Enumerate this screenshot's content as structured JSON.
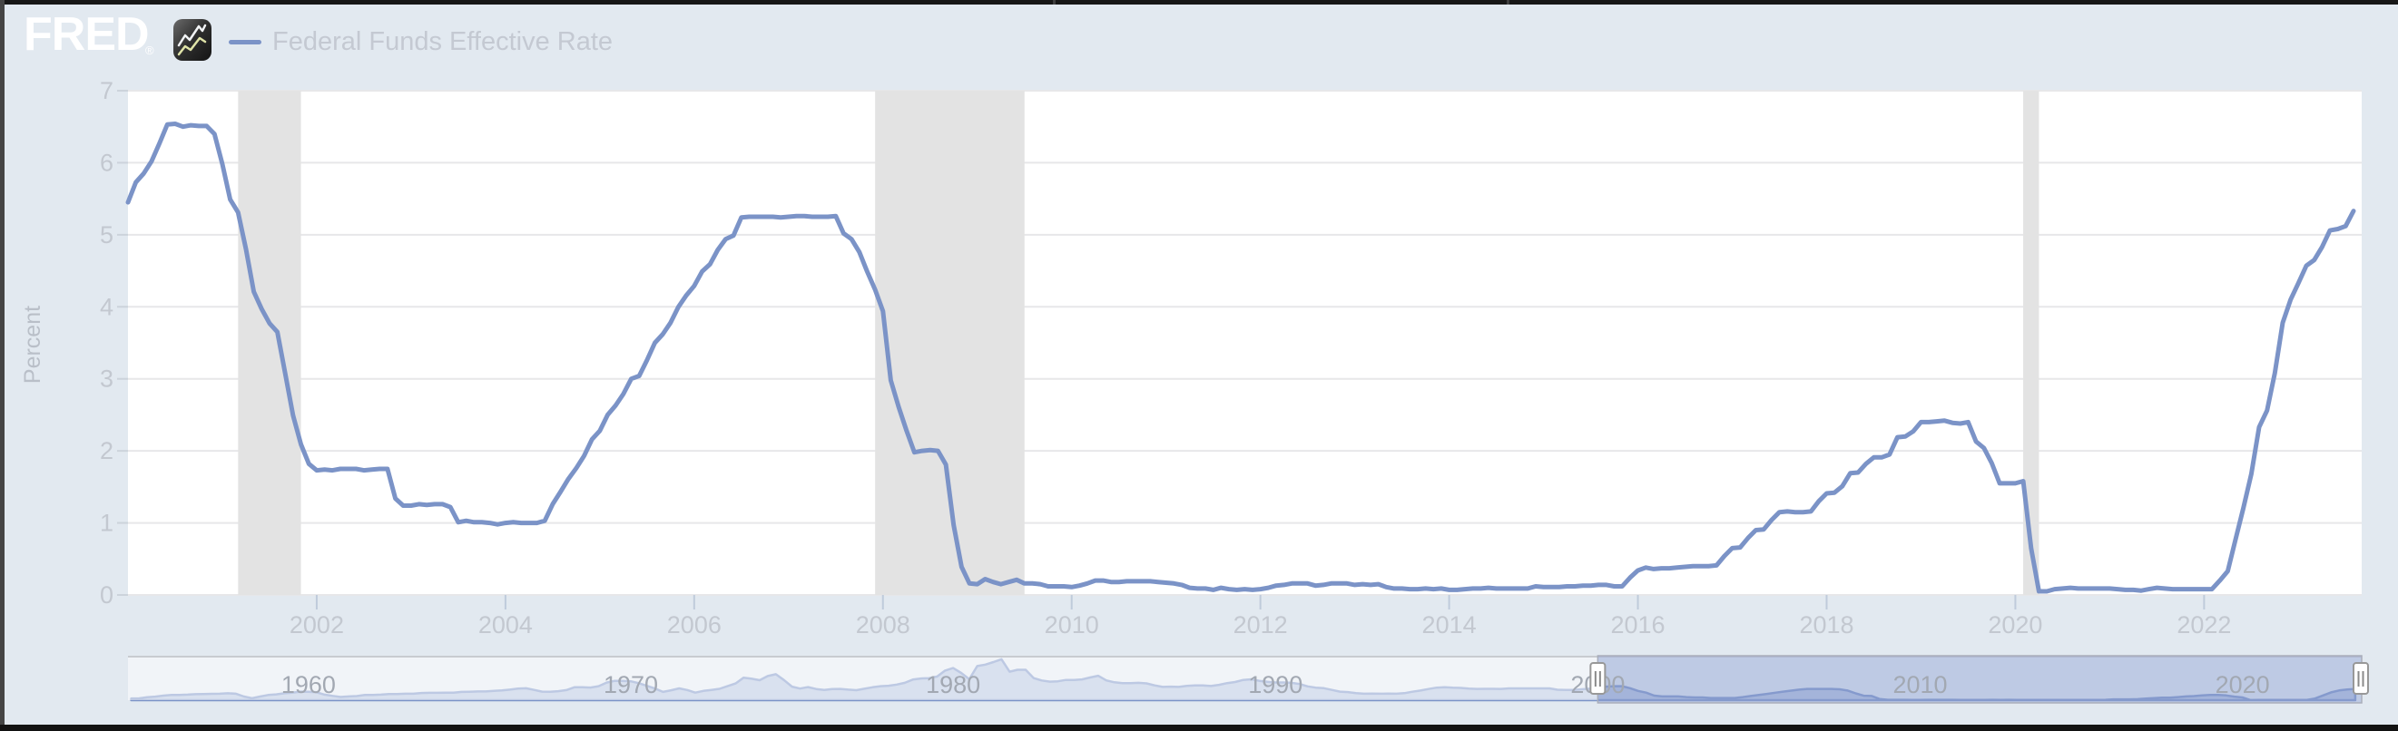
{
  "header": {
    "logo_text": "FRED",
    "logo_registered": "®",
    "legend": {
      "label": "Federal Funds Effective Rate"
    }
  },
  "theme": {
    "background": "#e2e9f0",
    "plot_background": "#ffffff",
    "line_color": "#7b93c7",
    "grid_color": "#e7e7e9",
    "recession_color": "#e3e3e3",
    "tick_mark_color": "#bfcbdb",
    "tick_label_color": "#c3c8d0",
    "axis_title_color": "#b9bfc8",
    "nav_label_color": "#a2a8b2",
    "nav_area_fill": "rgba(141,162,208,0.55)",
    "nav_selection_fill": "rgba(146,164,213,0.45)",
    "nav_mask_fill": "rgba(255,255,255,0.5)",
    "nav_top_line_color": "#c8cbd0",
    "handle_fill": "#ffffff",
    "handle_border": "#989898",
    "handle_grip": "#8a8a8a"
  },
  "main_chart": {
    "ylabel": "Percent",
    "y_ticks": [
      0,
      1,
      2,
      3,
      4,
      5,
      6,
      7
    ],
    "x_ticks": [
      2002,
      2004,
      2006,
      2008,
      2010,
      2012,
      2014,
      2016,
      2018,
      2020,
      2022
    ]
  },
  "navigator": {
    "decade_labels": [
      1960,
      1970,
      1980,
      1990,
      2000,
      2010,
      2020
    ],
    "selection_start": 2000.0,
    "selection_end": 2023.67
  },
  "chart_data": [
    {
      "type": "line",
      "name": "Federal Funds Effective Rate",
      "ylabel": "Percent",
      "ylim": [
        0,
        7
      ],
      "xlim": [
        2000.0,
        2023.67
      ],
      "x_start": 2000.0,
      "x_step": 0.08333,
      "frequency": "monthly",
      "recessions": [
        [
          2001.167,
          2001.833
        ],
        [
          2007.917,
          2009.5
        ],
        [
          2020.083,
          2020.25
        ]
      ],
      "values": [
        5.45,
        5.73,
        5.85,
        6.02,
        6.27,
        6.53,
        6.54,
        6.5,
        6.52,
        6.51,
        6.51,
        6.4,
        5.98,
        5.49,
        5.31,
        4.8,
        4.21,
        3.97,
        3.77,
        3.65,
        3.07,
        2.49,
        2.09,
        1.82,
        1.73,
        1.74,
        1.73,
        1.75,
        1.75,
        1.75,
        1.73,
        1.74,
        1.75,
        1.75,
        1.34,
        1.24,
        1.24,
        1.26,
        1.25,
        1.26,
        1.26,
        1.22,
        1.01,
        1.03,
        1.01,
        1.01,
        1.0,
        0.98,
        1.0,
        1.01,
        1.0,
        1.0,
        1.0,
        1.03,
        1.26,
        1.43,
        1.61,
        1.76,
        1.93,
        2.16,
        2.28,
        2.5,
        2.63,
        2.79,
        3.0,
        3.04,
        3.26,
        3.5,
        3.62,
        3.78,
        4.0,
        4.16,
        4.29,
        4.49,
        4.59,
        4.79,
        4.94,
        4.99,
        5.24,
        5.25,
        5.25,
        5.25,
        5.25,
        5.24,
        5.25,
        5.26,
        5.26,
        5.25,
        5.25,
        5.25,
        5.26,
        5.02,
        4.94,
        4.76,
        4.49,
        4.24,
        3.94,
        2.98,
        2.61,
        2.28,
        1.98,
        2.0,
        2.01,
        2.0,
        1.81,
        0.97,
        0.39,
        0.16,
        0.15,
        0.22,
        0.18,
        0.15,
        0.18,
        0.21,
        0.16,
        0.16,
        0.15,
        0.12,
        0.12,
        0.12,
        0.11,
        0.13,
        0.16,
        0.2,
        0.2,
        0.18,
        0.18,
        0.19,
        0.19,
        0.19,
        0.19,
        0.18,
        0.17,
        0.16,
        0.14,
        0.1,
        0.09,
        0.09,
        0.07,
        0.1,
        0.08,
        0.07,
        0.08,
        0.07,
        0.08,
        0.1,
        0.13,
        0.14,
        0.16,
        0.16,
        0.16,
        0.13,
        0.14,
        0.16,
        0.16,
        0.16,
        0.14,
        0.15,
        0.14,
        0.15,
        0.11,
        0.09,
        0.09,
        0.08,
        0.08,
        0.09,
        0.08,
        0.09,
        0.07,
        0.07,
        0.08,
        0.09,
        0.09,
        0.1,
        0.09,
        0.09,
        0.09,
        0.09,
        0.09,
        0.12,
        0.11,
        0.11,
        0.11,
        0.12,
        0.12,
        0.13,
        0.13,
        0.14,
        0.14,
        0.12,
        0.12,
        0.24,
        0.34,
        0.38,
        0.36,
        0.37,
        0.37,
        0.38,
        0.39,
        0.4,
        0.4,
        0.4,
        0.41,
        0.54,
        0.65,
        0.66,
        0.79,
        0.9,
        0.91,
        1.04,
        1.15,
        1.16,
        1.15,
        1.15,
        1.16,
        1.3,
        1.41,
        1.42,
        1.51,
        1.69,
        1.7,
        1.82,
        1.91,
        1.91,
        1.95,
        2.19,
        2.2,
        2.27,
        2.4,
        2.4,
        2.41,
        2.42,
        2.39,
        2.38,
        2.4,
        2.13,
        2.04,
        1.83,
        1.55,
        1.55,
        1.55,
        1.58,
        0.65,
        0.05,
        0.05,
        0.08,
        0.09,
        0.1,
        0.09,
        0.09,
        0.09,
        0.09,
        0.09,
        0.08,
        0.07,
        0.07,
        0.06,
        0.08,
        0.1,
        0.09,
        0.08,
        0.08,
        0.08,
        0.08,
        0.08,
        0.08,
        0.2,
        0.33,
        0.77,
        1.21,
        1.68,
        2.33,
        2.56,
        3.08,
        3.78,
        4.1,
        4.33,
        4.57,
        4.65,
        4.83,
        5.06,
        5.08,
        5.12,
        5.33
      ]
    },
    {
      "type": "area",
      "name": "navigator-full-history",
      "ylim": [
        0,
        19.9
      ],
      "x_start": 1954.5,
      "x_step": 0.25,
      "frequency": "quarterly",
      "values": [
        0.8,
        0.85,
        1.35,
        1.64,
        2.1,
        2.4,
        2.45,
        2.6,
        2.8,
        2.9,
        2.95,
        3.0,
        3.2,
        3.0,
        1.7,
        0.95,
        1.7,
        2.4,
        2.7,
        3.2,
        3.5,
        4.0,
        3.95,
        3.7,
        2.6,
        2.0,
        1.5,
        1.75,
        1.9,
        2.4,
        2.4,
        2.6,
        2.9,
        2.9,
        3.0,
        3.0,
        3.35,
        3.45,
        3.45,
        3.5,
        3.5,
        3.85,
        3.95,
        4.05,
        4.05,
        4.3,
        4.55,
        4.9,
        5.4,
        5.55,
        4.8,
        4.0,
        3.9,
        4.2,
        4.7,
        6.0,
        6.0,
        5.9,
        6.5,
        8.2,
        9.0,
        9.0,
        8.8,
        7.9,
        6.7,
        5.4,
        3.85,
        4.6,
        5.5,
        4.75,
        3.5,
        4.3,
        4.8,
        5.3,
        6.5,
        7.8,
        10.5,
        10.0,
        9.3,
        11.25,
        12.1,
        9.4,
        6.3,
        5.4,
        6.1,
        5.2,
        4.8,
        5.2,
        5.25,
        4.9,
        4.65,
        5.35,
        6.0,
        6.5,
        6.75,
        7.3,
        8.1,
        9.6,
        10.1,
        10.3,
        11.0,
        13.8,
        15.0,
        12.7,
        9.8,
        15.9,
        16.6,
        17.8,
        19.1,
        13.3,
        14.2,
        14.2,
        10.3,
        9.2,
        8.65,
        8.8,
        9.45,
        9.45,
        9.7,
        10.6,
        11.4,
        9.25,
        8.35,
        7.9,
        7.9,
        8.1,
        7.85,
        6.9,
        6.2,
        6.3,
        6.2,
        6.65,
        6.85,
        6.9,
        6.6,
        7.15,
        7.98,
        8.45,
        9.45,
        9.75,
        9.0,
        8.55,
        8.25,
        8.25,
        8.1,
        7.55,
        6.45,
        5.85,
        5.6,
        4.8,
        4.0,
        3.75,
        3.25,
        3.0,
        3.05,
        3.0,
        3.05,
        2.99,
        3.25,
        3.95,
        4.5,
        5.2,
        5.85,
        6.0,
        5.8,
        5.7,
        5.4,
        5.25,
        5.3,
        5.3,
        5.25,
        5.5,
        5.5,
        5.5,
        5.5,
        5.5,
        5.5,
        4.85,
        4.75,
        4.75,
        5.1,
        5.35,
        5.7,
        6.3,
        6.5,
        6.5,
        5.6,
        4.3,
        3.5,
        2.1,
        1.73,
        1.75,
        1.74,
        1.44,
        1.25,
        1.25,
        1.02,
        1.0,
        1.0,
        1.01,
        1.43,
        1.95,
        2.47,
        2.94,
        3.46,
        3.98,
        4.46,
        4.91,
        5.25,
        5.25,
        5.26,
        5.25,
        5.07,
        4.5,
        3.18,
        2.09,
        1.94,
        0.51,
        0.18,
        0.18,
        0.16,
        0.12,
        0.13,
        0.19,
        0.19,
        0.19,
        0.16,
        0.09,
        0.08,
        0.07,
        0.1,
        0.15,
        0.14,
        0.16,
        0.14,
        0.12,
        0.08,
        0.09,
        0.07,
        0.09,
        0.09,
        0.1,
        0.11,
        0.12,
        0.14,
        0.16,
        0.36,
        0.37,
        0.4,
        0.45,
        0.7,
        0.95,
        1.15,
        1.2,
        1.45,
        1.74,
        1.92,
        2.22,
        2.4,
        2.4,
        2.19,
        1.64,
        1.26,
        0.06,
        0.09,
        0.09,
        0.08,
        0.07,
        0.09,
        0.08,
        0.12,
        0.77,
        2.19,
        3.65,
        4.52,
        4.99,
        5.26
      ]
    }
  ]
}
